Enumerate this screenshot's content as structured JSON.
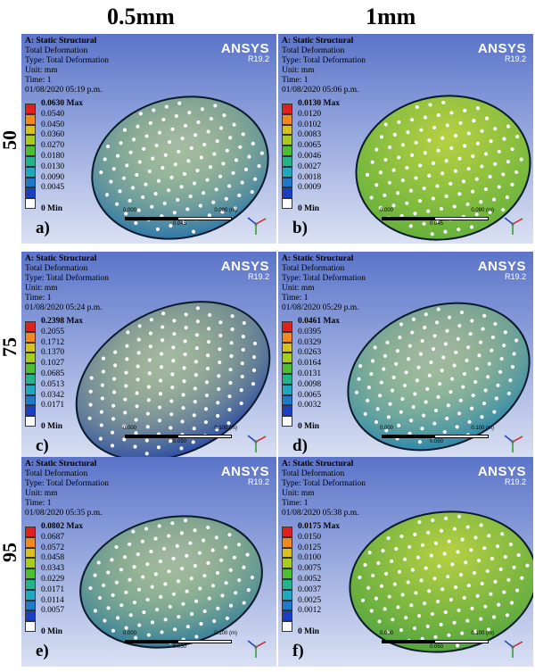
{
  "columns": [
    "0.5mm",
    "1mm"
  ],
  "rows": [
    "50",
    "75",
    "95"
  ],
  "panels": [
    {
      "letter": "a)",
      "title": "A: Static Structural",
      "line2": "Total Deformation",
      "line3": "Type: Total Deformation",
      "line4": "Unit: mm",
      "line5": "Time: 1",
      "date": "01/08/2020 05:19 p.m.",
      "brand": "ANSYS",
      "version": "R19.2",
      "legend": [
        "0.0630 Max",
        "0.0540",
        "0.0450",
        "0.0360",
        "0.0270",
        "0.0180",
        "0.0130",
        "0.0090",
        "0.0045",
        "0 Min"
      ],
      "scale": [
        "0.000",
        "0.045",
        "0.090 (m)"
      ],
      "body_color": "#1f6cae"
    },
    {
      "letter": "b)",
      "title": "A: Static Structural",
      "line2": "Total Deformation",
      "line3": "Type: Total Deformation",
      "line4": "Unit: mm",
      "line5": "Time: 1",
      "date": "01/08/2020 05:06 p.m.",
      "brand": "ANSYS",
      "version": "R19.2",
      "legend": [
        "0.0130 Max",
        "0.0120",
        "0.0102",
        "0.0083",
        "0.0065",
        "0.0046",
        "0.0027",
        "0.0018",
        "0.0009",
        "0 Min"
      ],
      "scale": [
        "0.000",
        "0.045",
        "0.090 (m)"
      ],
      "body_color": "#5fae3c"
    },
    {
      "letter": "c)",
      "title": "A: Static Structural",
      "line2": "Total Deformation",
      "line3": "Type: Total Deformation",
      "line4": "Unit: mm",
      "line5": "Time: 1",
      "date": "01/08/2020 05:24 p.m.",
      "brand": "ANSYS",
      "version": "R19.2",
      "legend": [
        "0.2398 Max",
        "0.2055",
        "0.1712",
        "0.1370",
        "0.1027",
        "0.0685",
        "0.0513",
        "0.0342",
        "0.0171",
        "0 Min"
      ],
      "scale": [
        "0.000",
        "0.050",
        "0.100 (m)"
      ],
      "body_color": "#1f3fa8"
    },
    {
      "letter": "d)",
      "title": "A: Static Structural",
      "line2": "Total Deformation",
      "line3": "Type: Total Deformation",
      "line4": "Unit: mm",
      "line5": "Time: 1",
      "date": "01/08/2020 05:29 p.m.",
      "brand": "ANSYS",
      "version": "R19.2",
      "legend": [
        "0.0461 Max",
        "0.0395",
        "0.0329",
        "0.0263",
        "0.0164",
        "0.0131",
        "0.0098",
        "0.0065",
        "0.0032",
        "0 Min"
      ],
      "scale": [
        "0.000",
        "0.050",
        "0.100 (m)"
      ],
      "body_color": "#1f7fb0"
    },
    {
      "letter": "e)",
      "title": "A: Static Structural",
      "line2": "Total Deformation",
      "line3": "Type: Total Deformation",
      "line4": "Unit: mm",
      "line5": "Time: 1",
      "date": "01/08/2020 05:35 p.m.",
      "brand": "ANSYS",
      "version": "R19.2",
      "legend": [
        "0.0802 Max",
        "0.0687",
        "0.0572",
        "0.0458",
        "0.0343",
        "0.0229",
        "0.0171",
        "0.0114",
        "0.0057",
        "0 Min"
      ],
      "scale": [
        "0.000",
        "0.050",
        "0.100 (m)"
      ],
      "body_color": "#23739e"
    },
    {
      "letter": "f)",
      "title": "A: Static Structural",
      "line2": "Total Deformation",
      "line3": "Type: Total Deformation",
      "line4": "Unit: mm",
      "line5": "Time: 1",
      "date": "01/08/2020 05:38 p.m.",
      "brand": "ANSYS",
      "version": "R19.2",
      "legend": [
        "0.0175 Max",
        "0.0150",
        "0.0125",
        "0.0100",
        "0.0075",
        "0.0052",
        "0.0037",
        "0.0025",
        "0.0012",
        "0 Min"
      ],
      "scale": [
        "0.000",
        "0.050",
        "0.100 (m)"
      ],
      "body_color": "#4ea33f"
    }
  ],
  "legend_colors": [
    "#e0201c",
    "#f08a1c",
    "#d8c21a",
    "#a8cc1c",
    "#4dbd32",
    "#21b38a",
    "#1fa8c0",
    "#1f78c8",
    "#1c3fc0",
    "#ffffff"
  ]
}
